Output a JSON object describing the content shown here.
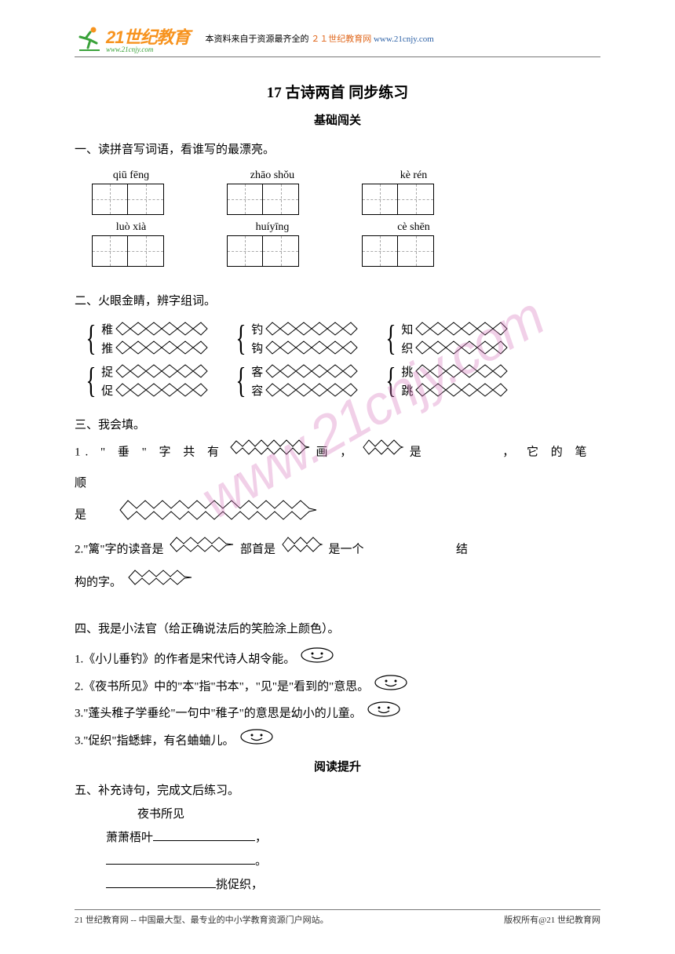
{
  "header": {
    "logo_text": "21世纪教育",
    "logo_url": "www.21cnjy.com",
    "note_prefix": "本资料来自于资源最齐全的",
    "note_hl1": "２１世纪教育网",
    "note_hl2": "www.21cnjy.com"
  },
  "title": "17 古诗两首  同步练习",
  "subtitle": "基础闯关",
  "sec1": {
    "head": "一、读拼音写词语，看谁写的最漂亮。",
    "pinyin_row1": [
      "qiū  fēnɡ",
      "zhāo shǒu",
      "kè  rén"
    ],
    "pinyin_row2": [
      "luò  xià",
      "huíyīnɡ",
      "cè shēn"
    ]
  },
  "sec2": {
    "head": "二、火眼金睛，辨字组词。",
    "pairs": [
      [
        [
          "稚",
          "推"
        ],
        [
          "钓",
          "钩"
        ],
        [
          "知",
          "织"
        ]
      ],
      [
        [
          "捉",
          "促"
        ],
        [
          "客",
          "容"
        ],
        [
          "挑",
          "跳"
        ]
      ]
    ]
  },
  "sec3": {
    "head": "三、我会填。",
    "line1_a": "1. \" 垂 \" 字 共 有",
    "line1_b": "画 ，",
    "line1_c": "是",
    "line1_d": "， 它 的 笔 顺",
    "line1_e": "是",
    "line2_a": "2.\"篱\"字的读音是",
    "line2_b": "部首是",
    "line2_c": "是一个",
    "line2_d": "结",
    "line2_e": "构的字。"
  },
  "sec4": {
    "head": "四、我是小法官（给正确说法后的笑脸涂上颜色）。",
    "items": [
      "1.《小儿垂钓》的作者是宋代诗人胡令能。",
      "2.《夜书所见》中的\"本\"指\"书本\"，\"见\"是\"看到的\"意思。",
      "3.\"蓬头稚子学垂纶\"一句中\"稚子\"的意思是幼小的儿童。",
      "3.\"促织\"指蟋蟀，有名蛐蛐儿。"
    ]
  },
  "sec5": {
    "title": "阅读提升",
    "head": "五、补充诗句，完成文后练习。",
    "poem_title": "夜书所见",
    "line1_prefix": "萧萧梧叶",
    "line1_suffix": "，",
    "line2_suffix": "。",
    "line3_suffix": "挑促织，"
  },
  "footer": {
    "left": "21 世纪教育网 -- 中国最大型、最专业的中小学教育资源门户网站。",
    "right": "版权所有@21 世纪教育网"
  },
  "watermark": "www.21cnjy.com",
  "colors": {
    "orange": "#f7931e",
    "green": "#3aa23a",
    "red": "#e0671c",
    "blue": "#2a5fa5",
    "wm": "rgba(216,120,190,0.35)"
  }
}
